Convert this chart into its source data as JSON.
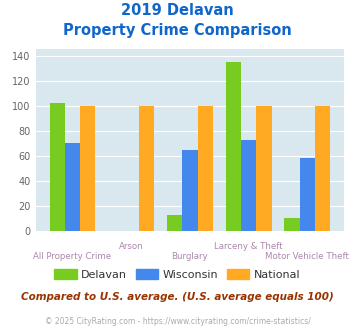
{
  "title_line1": "2019 Delavan",
  "title_line2": "Property Crime Comparison",
  "categories": [
    "All Property Crime",
    "Arson",
    "Burglary",
    "Larceny & Theft",
    "Motor Vehicle Theft"
  ],
  "cat_labels_bottom": [
    "All Property Crime",
    "",
    "Burglary",
    "",
    "Motor Vehicle Theft"
  ],
  "cat_labels_top": [
    "",
    "Arson",
    "",
    "Larceny & Theft",
    ""
  ],
  "delavan": [
    102,
    0,
    13,
    135,
    10
  ],
  "wisconsin": [
    70,
    0,
    65,
    73,
    58
  ],
  "national": [
    100,
    100,
    100,
    100,
    100
  ],
  "delavan_color": "#77cc22",
  "wisconsin_color": "#4488ee",
  "national_color": "#ffaa22",
  "ylim": [
    0,
    145
  ],
  "yticks": [
    0,
    20,
    40,
    60,
    80,
    100,
    120,
    140
  ],
  "bg_color": "#d8e8ee",
  "title_color": "#1166cc",
  "xlabel_color_bottom": "#aa88aa",
  "xlabel_color_top": "#aa88aa",
  "legend_labels": [
    "Delavan",
    "Wisconsin",
    "National"
  ],
  "footer_text": "Compared to U.S. average. (U.S. average equals 100)",
  "footer_color": "#993300",
  "copyright_text": "© 2025 CityRating.com - https://www.cityrating.com/crime-statistics/",
  "copyright_color": "#aaaaaa"
}
